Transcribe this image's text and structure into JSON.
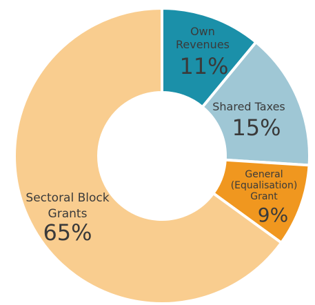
{
  "chart_data": {
    "type": "donut",
    "categories": [
      "Own Revenues",
      "Shared Taxes",
      "General (Equalisation) Grant",
      "Sectoral Block Grants"
    ],
    "values": [
      11,
      15,
      9,
      65
    ],
    "value_labels": [
      "11%",
      "15%",
      "9%",
      "65%"
    ],
    "colors": [
      "#1b90a9",
      "#9fc7d5",
      "#f0971f",
      "#f9cd8f"
    ]
  }
}
